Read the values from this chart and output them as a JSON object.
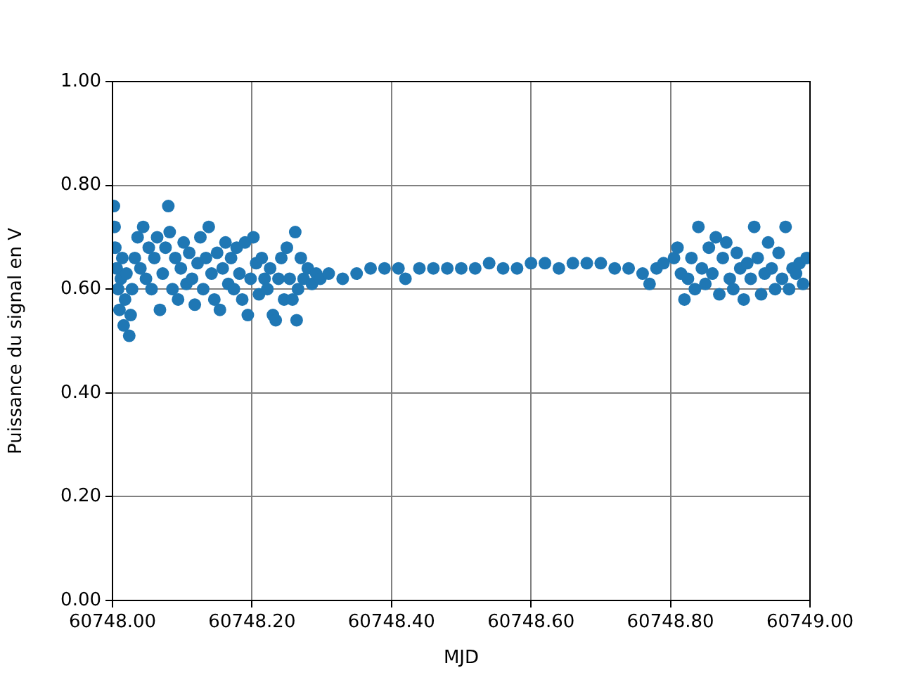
{
  "chart_data": {
    "type": "scatter",
    "xlabel": "MJD",
    "ylabel": "Puissance du signal en V",
    "xlim": [
      60748.0,
      60749.0
    ],
    "xticks": [
      {
        "value": 60748.0,
        "label": "60748.00"
      },
      {
        "value": 60748.2,
        "label": "60748.20"
      },
      {
        "value": 60748.4,
        "label": "60748.40"
      },
      {
        "value": 60748.6,
        "label": "60748.60"
      },
      {
        "value": 60748.8,
        "label": "60748.80"
      },
      {
        "value": 60749.0,
        "label": "60749.00"
      }
    ],
    "ylim": [
      0,
      1
    ],
    "yticks": [
      {
        "value": 0,
        "label": "0.00"
      },
      {
        "value": 0.2,
        "label": "0.20"
      },
      {
        "value": 0.4,
        "label": "0.40"
      },
      {
        "value": 0.6,
        "label": "0.60"
      },
      {
        "value": 0.8,
        "label": "0.80"
      },
      {
        "value": 1,
        "label": "1.00"
      }
    ],
    "grid": true,
    "marker": "circle",
    "legend": false,
    "series": [
      {
        "color": "#1f77b4",
        "x": [
          60748.002,
          60748.003,
          60748.004,
          60748.006,
          60748.008,
          60748.01,
          60748.012,
          60748.014,
          60748.016,
          60748.018,
          60748.02,
          60748.024,
          60748.026,
          60748.028,
          60748.032,
          60748.036,
          60748.04,
          60748.044,
          60748.048,
          60748.052,
          60748.056,
          60748.06,
          60748.064,
          60748.068,
          60748.072,
          60748.076,
          60748.08,
          60748.082,
          60748.086,
          60748.09,
          60748.094,
          60748.098,
          60748.102,
          60748.106,
          60748.11,
          60748.114,
          60748.118,
          60748.122,
          60748.126,
          60748.13,
          60748.134,
          60748.138,
          60748.142,
          60748.146,
          60748.15,
          60748.154,
          60748.158,
          60748.162,
          60748.166,
          60748.17,
          60748.174,
          60748.178,
          60748.182,
          60748.186,
          60748.19,
          60748.194,
          60748.198,
          60748.202,
          60748.206,
          60748.21,
          60748.214,
          60748.218,
          60748.222,
          60748.226,
          60748.23,
          60748.234,
          60748.238,
          60748.242,
          60748.246,
          60748.25,
          60748.254,
          60748.258,
          60748.262,
          60748.264,
          60748.266,
          60748.27,
          60748.274,
          60748.28,
          60748.286,
          60748.292,
          60748.298,
          60748.31,
          60748.33,
          60748.35,
          60748.37,
          60748.39,
          60748.41,
          60748.42,
          60748.44,
          60748.46,
          60748.48,
          60748.5,
          60748.52,
          60748.54,
          60748.56,
          60748.58,
          60748.6,
          60748.62,
          60748.64,
          60748.66,
          60748.68,
          60748.7,
          60748.72,
          60748.74,
          60748.76,
          60748.77,
          60748.78,
          60748.79,
          60748.805,
          60748.81,
          60748.815,
          60748.82,
          60748.825,
          60748.83,
          60748.835,
          60748.84,
          60748.845,
          60748.85,
          60748.855,
          60748.86,
          60748.865,
          60748.87,
          60748.875,
          60748.88,
          60748.885,
          60748.89,
          60748.895,
          60748.9,
          60748.905,
          60748.91,
          60748.915,
          60748.92,
          60748.925,
          60748.93,
          60748.935,
          60748.94,
          60748.945,
          60748.95,
          60748.955,
          60748.96,
          60748.965,
          60748.97,
          60748.975,
          60748.98,
          60748.985,
          60748.99,
          60748.995
        ],
        "values": [
          0.76,
          0.72,
          0.68,
          0.64,
          0.6,
          0.56,
          0.62,
          0.66,
          0.53,
          0.58,
          0.63,
          0.51,
          0.55,
          0.6,
          0.66,
          0.7,
          0.64,
          0.72,
          0.62,
          0.68,
          0.6,
          0.66,
          0.7,
          0.56,
          0.63,
          0.68,
          0.76,
          0.71,
          0.6,
          0.66,
          0.58,
          0.64,
          0.69,
          0.61,
          0.67,
          0.62,
          0.57,
          0.65,
          0.7,
          0.6,
          0.66,
          0.72,
          0.63,
          0.58,
          0.67,
          0.56,
          0.64,
          0.69,
          0.61,
          0.66,
          0.6,
          0.68,
          0.63,
          0.58,
          0.69,
          0.55,
          0.62,
          0.7,
          0.65,
          0.59,
          0.66,
          0.62,
          0.6,
          0.64,
          0.55,
          0.54,
          0.62,
          0.66,
          0.58,
          0.68,
          0.62,
          0.58,
          0.71,
          0.54,
          0.6,
          0.66,
          0.62,
          0.64,
          0.61,
          0.63,
          0.62,
          0.63,
          0.62,
          0.63,
          0.64,
          0.64,
          0.64,
          0.62,
          0.64,
          0.64,
          0.64,
          0.64,
          0.64,
          0.65,
          0.64,
          0.64,
          0.65,
          0.65,
          0.64,
          0.65,
          0.65,
          0.65,
          0.64,
          0.64,
          0.63,
          0.61,
          0.64,
          0.65,
          0.66,
          0.68,
          0.63,
          0.58,
          0.62,
          0.66,
          0.6,
          0.72,
          0.64,
          0.61,
          0.68,
          0.63,
          0.7,
          0.59,
          0.66,
          0.69,
          0.62,
          0.6,
          0.67,
          0.64,
          0.58,
          0.65,
          0.62,
          0.72,
          0.66,
          0.59,
          0.63,
          0.69,
          0.64,
          0.6,
          0.67,
          0.62,
          0.72,
          0.6,
          0.64,
          0.63,
          0.65,
          0.61,
          0.66
        ]
      }
    ]
  }
}
